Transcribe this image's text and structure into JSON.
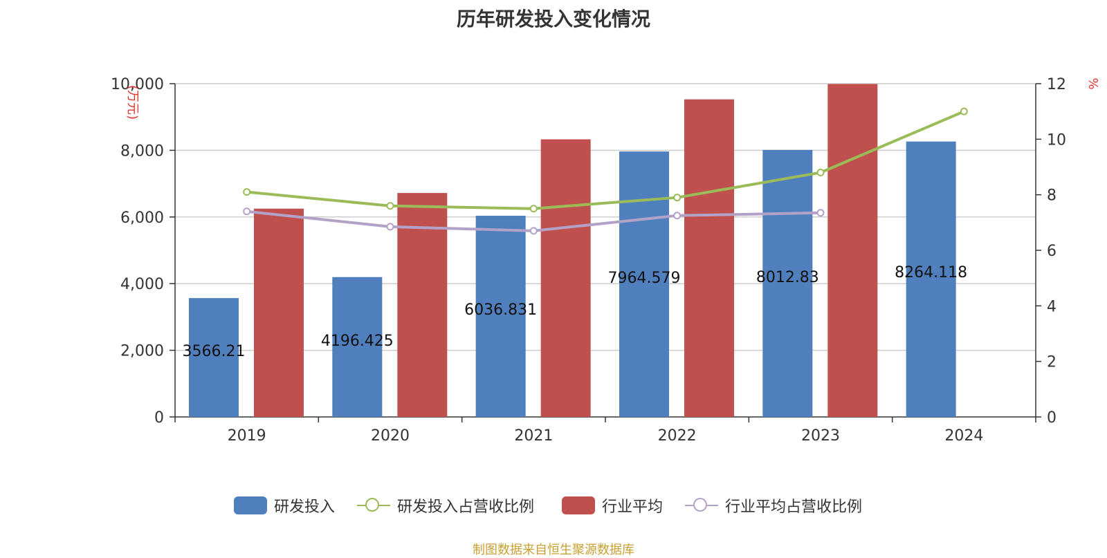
{
  "title": "历年研发投入变化情况",
  "source": "制图数据来自恒生聚源数据库",
  "colors": {
    "rd": "#4f7fbd",
    "industry": "#c0504d",
    "rd_ratio": "#9bbb59",
    "industry_ratio": "#b3a2c7",
    "axis_unit": "#e8332a",
    "source": "#c8a032"
  },
  "chart_data": {
    "type": "bar",
    "title": "历年研发投入变化情况",
    "categories": [
      "2019",
      "2020",
      "2021",
      "2022",
      "2023",
      "2024"
    ],
    "y_left": {
      "label": "(万元)",
      "range": [
        0,
        10000
      ],
      "ticks": [
        "0",
        "2,000",
        "4,000",
        "6,000",
        "8,000",
        "10,000"
      ]
    },
    "y_right": {
      "label": "%",
      "range": [
        0,
        12
      ],
      "ticks": [
        "0",
        "2",
        "4",
        "6",
        "8",
        "10",
        "12"
      ]
    },
    "grid": true,
    "legend_position": "bottom",
    "series": [
      {
        "name": "研发投入",
        "kind": "bar",
        "axis": "left",
        "color": "#4f7fbd",
        "values": [
          3566.21,
          4196.425,
          6036.831,
          7964.579,
          8012.83,
          8264.118
        ],
        "labels": [
          "3566.21",
          "4196.425",
          "6036.831",
          "7964.579",
          "8012.83",
          "8264.118"
        ]
      },
      {
        "name": "研发投入占营收比例",
        "kind": "line",
        "axis": "right",
        "color": "#9bbb59",
        "values": [
          8.1,
          7.6,
          7.5,
          7.9,
          8.8,
          11.0
        ]
      },
      {
        "name": "行业平均",
        "kind": "bar",
        "axis": "left",
        "color": "#c0504d",
        "values": [
          6250,
          6720,
          8330,
          9530,
          9990,
          null
        ]
      },
      {
        "name": "行业平均占营收比例",
        "kind": "line",
        "axis": "right",
        "color": "#b3a2c7",
        "values": [
          7.4,
          6.85,
          6.7,
          7.25,
          7.35,
          null
        ]
      }
    ]
  }
}
